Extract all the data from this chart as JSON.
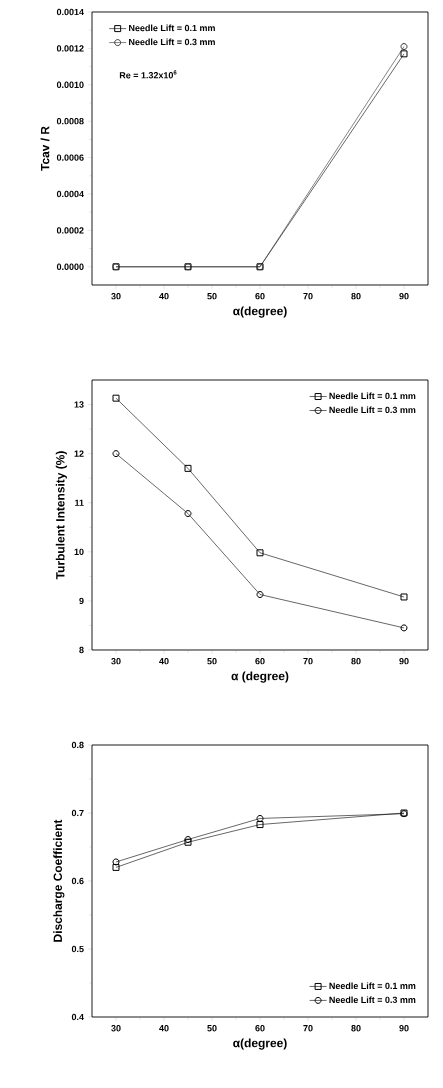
{
  "chart_data": [
    {
      "type": "line",
      "xlabel": "α(degree)",
      "ylabel": "Tcav / R",
      "x": [
        30,
        45,
        60,
        90
      ],
      "xlim": [
        25,
        95
      ],
      "xticks": [
        30,
        40,
        50,
        60,
        70,
        80,
        90
      ],
      "ylim": [
        -0.0001,
        0.0014
      ],
      "yticks": [
        {
          "value": 0,
          "label": "0.0000"
        },
        {
          "value": 0.0002,
          "label": "0.0002"
        },
        {
          "value": 0.0004,
          "label": "0.0004"
        },
        {
          "value": 0.0006,
          "label": "0.0006"
        },
        {
          "value": 0.0008,
          "label": "0.0008"
        },
        {
          "value": 0.001,
          "label": "0.0010"
        },
        {
          "value": 0.0012,
          "label": "0.0012"
        },
        {
          "value": 0.0014,
          "label": "0.0014"
        }
      ],
      "legend": "top left",
      "line_style": "solid",
      "annotations": [
        "Re = 1.32x10$^{6}$"
      ],
      "series": [
        {
          "name": "Needle Lift = 0.1 mm",
          "color": "#000000",
          "marker": "square",
          "values": [
            0,
            0,
            0,
            0.00117
          ]
        },
        {
          "name": "Needle Lift = 0.3 mm",
          "color": "#333333",
          "marker": "circle",
          "values": [
            0,
            0,
            0,
            0.00121
          ]
        }
      ]
    },
    {
      "type": "line",
      "xlabel": "α (degree)",
      "ylabel": "Turbulent Intensity (%)",
      "x": [
        30,
        45,
        60,
        90
      ],
      "xlim": [
        25,
        95
      ],
      "xticks": [
        30,
        40,
        50,
        60,
        70,
        80,
        90
      ],
      "ylim": [
        8,
        13.5
      ],
      "yticks": [
        8,
        9,
        10,
        11,
        12,
        13
      ],
      "legend": "top right",
      "line_style": "solid",
      "series": [
        {
          "name": "Needle Lift = 0.1 mm",
          "color": "#000000",
          "marker": "square",
          "values": [
            13.13,
            11.7,
            9.98,
            9.08
          ]
        },
        {
          "name": "Needle Lift = 0.3 mm",
          "color": "#000000",
          "marker": "circle",
          "values": [
            12.0,
            10.78,
            9.13,
            8.45
          ]
        }
      ]
    },
    {
      "type": "line",
      "xlabel": "α(degree)",
      "ylabel": "Discharge Coefficient",
      "x": [
        30,
        45,
        60,
        90
      ],
      "xlim": [
        25,
        95
      ],
      "xticks": [
        30,
        40,
        50,
        60,
        70,
        80,
        90
      ],
      "ylim": [
        0.4,
        0.8
      ],
      "yticks": [
        0.4,
        0.5,
        0.6,
        0.7,
        0.8
      ],
      "legend": "bottom right",
      "line_style": "solid",
      "series": [
        {
          "name": "Needle Lift = 0.1 mm",
          "color": "#000000",
          "marker": "square",
          "values": [
            0.62,
            0.657,
            0.683,
            0.7
          ]
        },
        {
          "name": "Needle Lift = 0.3 mm",
          "color": "#000000",
          "marker": "circle",
          "values": [
            0.628,
            0.661,
            0.692,
            0.699
          ]
        }
      ]
    }
  ]
}
